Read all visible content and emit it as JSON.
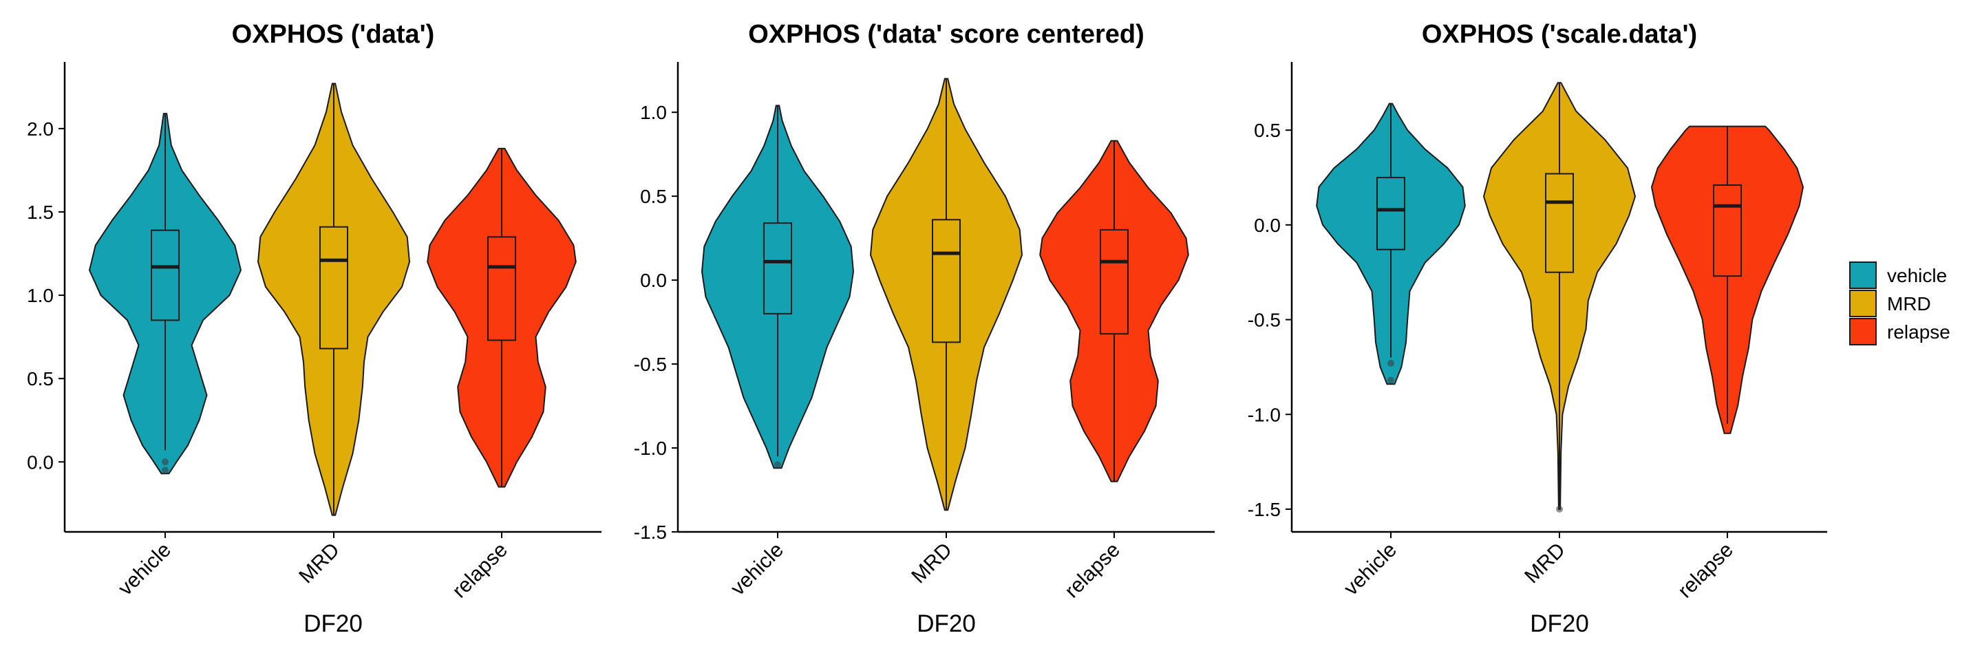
{
  "chart_data": [
    {
      "type": "violin",
      "title": "OXPHOS ('data')",
      "xlabel": "DF20",
      "ylabel": "",
      "categories": [
        "vehicle",
        "MRD",
        "relapse"
      ],
      "ylim": [
        -0.42,
        2.4
      ],
      "yticks": [
        "0.0",
        "0.5",
        "1.0",
        "1.5",
        "2.0"
      ],
      "grid": false,
      "series": [
        {
          "category": "vehicle",
          "color": "#14A1B1",
          "min": -0.07,
          "max": 2.09,
          "q1": 0.85,
          "median": 1.17,
          "q3": 1.39,
          "whisker_low": 0.07,
          "whisker_high": 2.09,
          "outliers": [
            0.0,
            -0.05
          ],
          "density": [
            [
              -0.07,
              0.05
            ],
            [
              0.0,
              0.15
            ],
            [
              0.1,
              0.3
            ],
            [
              0.25,
              0.45
            ],
            [
              0.4,
              0.55
            ],
            [
              0.55,
              0.45
            ],
            [
              0.7,
              0.35
            ],
            [
              0.85,
              0.5
            ],
            [
              1.0,
              0.85
            ],
            [
              1.15,
              1.0
            ],
            [
              1.3,
              0.92
            ],
            [
              1.45,
              0.7
            ],
            [
              1.6,
              0.45
            ],
            [
              1.75,
              0.22
            ],
            [
              1.9,
              0.08
            ],
            [
              2.09,
              0.02
            ]
          ]
        },
        {
          "category": "MRD",
          "color": "#E0AC08",
          "min": -0.32,
          "max": 2.27,
          "q1": 0.68,
          "median": 1.21,
          "q3": 1.41,
          "whisker_low": -0.32,
          "whisker_high": 2.27,
          "outliers": [],
          "density": [
            [
              -0.32,
              0.02
            ],
            [
              -0.15,
              0.12
            ],
            [
              0.05,
              0.25
            ],
            [
              0.25,
              0.33
            ],
            [
              0.45,
              0.38
            ],
            [
              0.6,
              0.4
            ],
            [
              0.75,
              0.45
            ],
            [
              0.9,
              0.65
            ],
            [
              1.05,
              0.9
            ],
            [
              1.2,
              1.0
            ],
            [
              1.35,
              0.97
            ],
            [
              1.5,
              0.78
            ],
            [
              1.7,
              0.5
            ],
            [
              1.9,
              0.25
            ],
            [
              2.1,
              0.1
            ],
            [
              2.27,
              0.02
            ]
          ]
        },
        {
          "category": "relapse",
          "color": "#FA3A0E",
          "min": -0.15,
          "max": 1.88,
          "q1": 0.73,
          "median": 1.17,
          "q3": 1.35,
          "whisker_low": -0.15,
          "whisker_high": 1.88,
          "outliers": [],
          "density": [
            [
              -0.15,
              0.04
            ],
            [
              0.0,
              0.2
            ],
            [
              0.15,
              0.4
            ],
            [
              0.3,
              0.55
            ],
            [
              0.45,
              0.58
            ],
            [
              0.6,
              0.48
            ],
            [
              0.75,
              0.45
            ],
            [
              0.9,
              0.62
            ],
            [
              1.05,
              0.85
            ],
            [
              1.2,
              0.98
            ],
            [
              1.3,
              0.95
            ],
            [
              1.45,
              0.75
            ],
            [
              1.6,
              0.45
            ],
            [
              1.75,
              0.2
            ],
            [
              1.88,
              0.04
            ]
          ]
        }
      ]
    },
    {
      "type": "violin",
      "title": "OXPHOS ('data' score centered)",
      "xlabel": "DF20",
      "ylabel": "",
      "categories": [
        "vehicle",
        "MRD",
        "relapse"
      ],
      "ylim": [
        -1.5,
        1.3
      ],
      "yticks": [
        "-1.5",
        "-1.0",
        "-0.5",
        "0.0",
        "0.5",
        "1.0"
      ],
      "grid": false,
      "series": [
        {
          "category": "vehicle",
          "color": "#14A1B1",
          "min": -1.12,
          "max": 1.04,
          "q1": -0.2,
          "median": 0.11,
          "q3": 0.34,
          "whisker_low": -1.05,
          "whisker_high": 1.04,
          "outliers": [
            -1.1
          ],
          "density": [
            [
              -1.12,
              0.05
            ],
            [
              -1.0,
              0.15
            ],
            [
              -0.85,
              0.3
            ],
            [
              -0.7,
              0.45
            ],
            [
              -0.55,
              0.55
            ],
            [
              -0.4,
              0.65
            ],
            [
              -0.25,
              0.8
            ],
            [
              -0.1,
              0.95
            ],
            [
              0.05,
              1.0
            ],
            [
              0.2,
              0.97
            ],
            [
              0.35,
              0.82
            ],
            [
              0.5,
              0.6
            ],
            [
              0.65,
              0.35
            ],
            [
              0.8,
              0.18
            ],
            [
              0.95,
              0.06
            ],
            [
              1.04,
              0.02
            ]
          ]
        },
        {
          "category": "MRD",
          "color": "#E0AC08",
          "min": -1.37,
          "max": 1.2,
          "q1": -0.37,
          "median": 0.16,
          "q3": 0.36,
          "whisker_low": -1.37,
          "whisker_high": 1.2,
          "outliers": [],
          "density": [
            [
              -1.37,
              0.02
            ],
            [
              -1.2,
              0.12
            ],
            [
              -1.0,
              0.25
            ],
            [
              -0.8,
              0.33
            ],
            [
              -0.6,
              0.4
            ],
            [
              -0.4,
              0.5
            ],
            [
              -0.2,
              0.7
            ],
            [
              0.0,
              0.88
            ],
            [
              0.15,
              1.0
            ],
            [
              0.3,
              0.97
            ],
            [
              0.5,
              0.78
            ],
            [
              0.7,
              0.5
            ],
            [
              0.9,
              0.25
            ],
            [
              1.05,
              0.1
            ],
            [
              1.2,
              0.02
            ]
          ]
        },
        {
          "category": "relapse",
          "color": "#FA3A0E",
          "min": -1.2,
          "max": 0.83,
          "q1": -0.32,
          "median": 0.11,
          "q3": 0.3,
          "whisker_low": -1.2,
          "whisker_high": 0.83,
          "outliers": [],
          "density": [
            [
              -1.2,
              0.04
            ],
            [
              -1.05,
              0.2
            ],
            [
              -0.9,
              0.4
            ],
            [
              -0.75,
              0.55
            ],
            [
              -0.6,
              0.58
            ],
            [
              -0.45,
              0.48
            ],
            [
              -0.3,
              0.45
            ],
            [
              -0.15,
              0.62
            ],
            [
              0.0,
              0.85
            ],
            [
              0.15,
              0.98
            ],
            [
              0.25,
              0.95
            ],
            [
              0.4,
              0.75
            ],
            [
              0.55,
              0.45
            ],
            [
              0.7,
              0.2
            ],
            [
              0.83,
              0.04
            ]
          ]
        }
      ]
    },
    {
      "type": "violin",
      "title": "OXPHOS ('scale.data')",
      "xlabel": "DF20",
      "ylabel": "",
      "categories": [
        "vehicle",
        "MRD",
        "relapse"
      ],
      "ylim": [
        -1.62,
        0.86
      ],
      "yticks": [
        "-1.5",
        "-1.0",
        "-0.5",
        "0.0",
        "0.5"
      ],
      "grid": false,
      "series": [
        {
          "category": "vehicle",
          "color": "#14A1B1",
          "min": -0.84,
          "max": 0.64,
          "q1": -0.13,
          "median": 0.08,
          "q3": 0.25,
          "whisker_low": -0.7,
          "whisker_high": 0.64,
          "outliers": [
            -0.73,
            -0.82
          ],
          "density": [
            [
              -0.84,
              0.05
            ],
            [
              -0.75,
              0.14
            ],
            [
              -0.62,
              0.2
            ],
            [
              -0.5,
              0.22
            ],
            [
              -0.35,
              0.25
            ],
            [
              -0.2,
              0.45
            ],
            [
              -0.1,
              0.7
            ],
            [
              0.0,
              0.9
            ],
            [
              0.1,
              0.98
            ],
            [
              0.2,
              0.95
            ],
            [
              0.3,
              0.75
            ],
            [
              0.4,
              0.45
            ],
            [
              0.5,
              0.22
            ],
            [
              0.58,
              0.1
            ],
            [
              0.64,
              0.02
            ]
          ]
        },
        {
          "category": "MRD",
          "color": "#E0AC08",
          "min": -1.5,
          "max": 0.75,
          "q1": -0.25,
          "median": 0.12,
          "q3": 0.27,
          "whisker_low": -1.5,
          "whisker_high": 0.75,
          "outliers": [
            -1.5
          ],
          "density": [
            [
              -1.5,
              0.01
            ],
            [
              -1.2,
              0.02
            ],
            [
              -1.0,
              0.04
            ],
            [
              -0.85,
              0.12
            ],
            [
              -0.7,
              0.25
            ],
            [
              -0.55,
              0.35
            ],
            [
              -0.4,
              0.38
            ],
            [
              -0.25,
              0.5
            ],
            [
              -0.1,
              0.75
            ],
            [
              0.05,
              0.92
            ],
            [
              0.15,
              1.0
            ],
            [
              0.3,
              0.9
            ],
            [
              0.45,
              0.6
            ],
            [
              0.6,
              0.22
            ],
            [
              0.75,
              0.02
            ]
          ]
        },
        {
          "category": "relapse",
          "color": "#FA3A0E",
          "min": -1.1,
          "max": 0.52,
          "q1": -0.27,
          "median": 0.1,
          "q3": 0.21,
          "whisker_low": -1.05,
          "whisker_high": 0.52,
          "outliers": [],
          "density": [
            [
              -1.1,
              0.04
            ],
            [
              -0.95,
              0.14
            ],
            [
              -0.8,
              0.2
            ],
            [
              -0.65,
              0.28
            ],
            [
              -0.5,
              0.33
            ],
            [
              -0.35,
              0.45
            ],
            [
              -0.2,
              0.62
            ],
            [
              -0.05,
              0.8
            ],
            [
              0.1,
              0.95
            ],
            [
              0.2,
              1.0
            ],
            [
              0.3,
              0.92
            ],
            [
              0.4,
              0.75
            ],
            [
              0.5,
              0.55
            ],
            [
              0.52,
              0.5
            ]
          ]
        }
      ]
    }
  ],
  "legend": {
    "placement": "right",
    "items": [
      {
        "label": "vehicle",
        "color": "#14A1B1"
      },
      {
        "label": "MRD",
        "color": "#E0AC08"
      },
      {
        "label": "relapse",
        "color": "#FA3A0E"
      }
    ]
  }
}
